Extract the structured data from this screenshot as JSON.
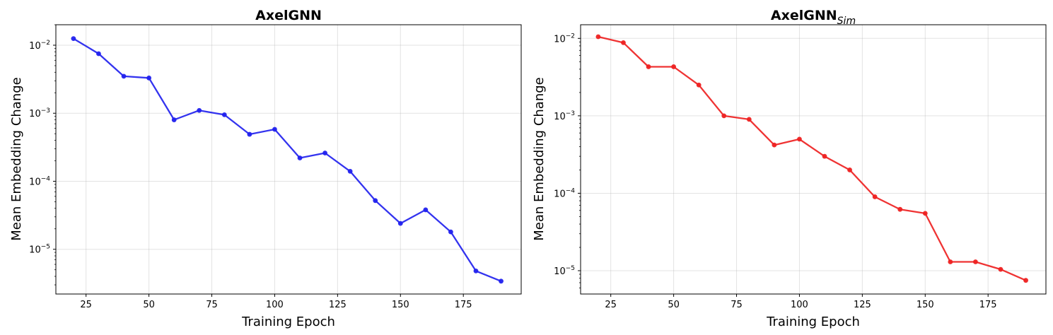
{
  "chart_data": [
    {
      "type": "line",
      "title": "AxelGNN",
      "title_subscript": "",
      "xlabel": "Training Epoch",
      "ylabel": "Mean Embedding Change",
      "yscale": "log",
      "xlim": [
        13,
        198
      ],
      "ylim": [
        2.2e-06,
        0.02
      ],
      "xticks": [
        25,
        50,
        75,
        100,
        125,
        150,
        175
      ],
      "yticks": [
        1e-05,
        0.0001,
        0.001,
        0.01
      ],
      "ytick_labels": [
        [
          "10",
          "−5"
        ],
        [
          "10",
          "−4"
        ],
        [
          "10",
          "−3"
        ],
        [
          "10",
          "−2"
        ]
      ],
      "grid": true,
      "color": "#2222ee",
      "series": [
        {
          "x": [
            20,
            30,
            40,
            50,
            60,
            70,
            80,
            90,
            100,
            110,
            120,
            130,
            140,
            150,
            160,
            170,
            180,
            190
          ],
          "y": [
            0.0125,
            0.0075,
            0.0035,
            0.0033,
            0.0008,
            0.0011,
            0.00095,
            0.00049,
            0.00058,
            0.00022,
            0.00026,
            0.00014,
            5.2e-05,
            2.4e-05,
            3.8e-05,
            1.8e-05,
            4.8e-06,
            3.4e-06
          ]
        }
      ]
    },
    {
      "type": "line",
      "title": "AxelGNN",
      "title_subscript": "Sim",
      "xlabel": "Training Epoch",
      "ylabel": "Mean Embedding Change",
      "yscale": "log",
      "xlim": [
        13,
        198
      ],
      "ylim": [
        5e-06,
        0.015
      ],
      "xticks": [
        25,
        50,
        75,
        100,
        125,
        150,
        175
      ],
      "yticks": [
        1e-05,
        0.0001,
        0.001,
        0.01
      ],
      "ytick_labels": [
        [
          "10",
          "−5"
        ],
        [
          "10",
          "−4"
        ],
        [
          "10",
          "−3"
        ],
        [
          "10",
          "−2"
        ]
      ],
      "grid": true,
      "color": "#ee2222",
      "series": [
        {
          "x": [
            20,
            30,
            40,
            50,
            60,
            70,
            80,
            90,
            100,
            110,
            120,
            130,
            140,
            150,
            160,
            170,
            180,
            190
          ],
          "y": [
            0.0105,
            0.0088,
            0.0043,
            0.0043,
            0.0025,
            0.001,
            0.0009,
            0.00042,
            0.0005,
            0.0003,
            0.0002,
            9e-05,
            6.2e-05,
            5.5e-05,
            1.3e-05,
            1.3e-05,
            1.04e-05,
            7.5e-06
          ]
        }
      ]
    }
  ]
}
